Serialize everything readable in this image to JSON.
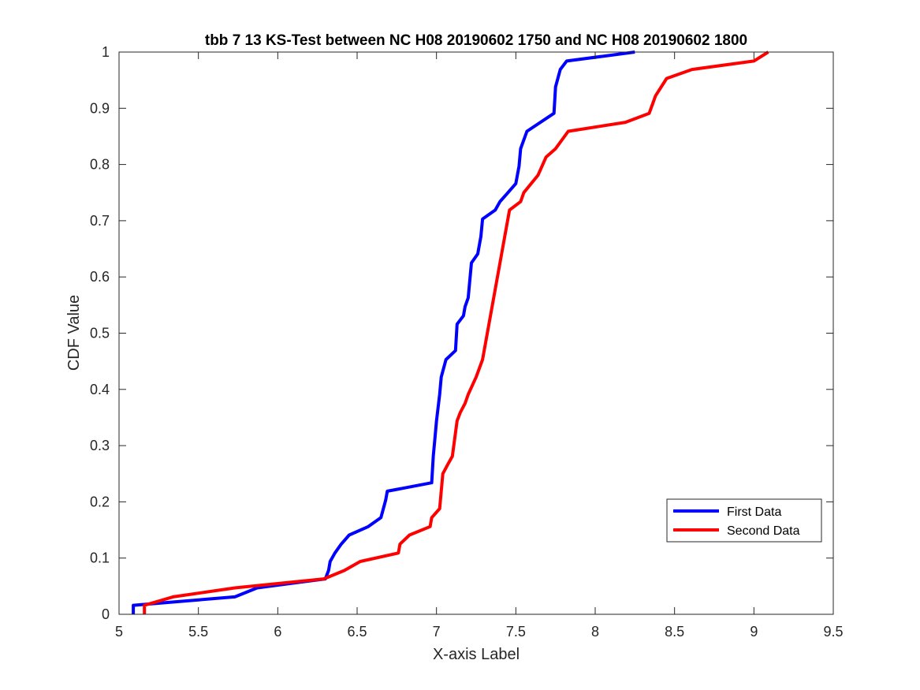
{
  "chart_data": {
    "type": "line",
    "title": "tbb 7 13 KS-Test between NC H08 20190602 1750 and NC H08 20190602 1800",
    "xlabel": "X-axis Label",
    "ylabel": "CDF Value",
    "xlim": [
      5,
      9.5
    ],
    "ylim": [
      0,
      1
    ],
    "xticks": [
      5,
      5.5,
      6,
      6.5,
      7,
      7.5,
      8,
      8.5,
      9,
      9.5
    ],
    "yticks": [
      0,
      0.1,
      0.2,
      0.3,
      0.4,
      0.5,
      0.6,
      0.7,
      0.8,
      0.9,
      1
    ],
    "xtick_labels": [
      "5",
      "5.5",
      "6",
      "6.5",
      "7",
      "7.5",
      "8",
      "8.5",
      "9",
      "9.5"
    ],
    "ytick_labels": [
      "0",
      "0.1",
      "0.2",
      "0.3",
      "0.4",
      "0.5",
      "0.6",
      "0.7",
      "0.8",
      "0.9",
      "1"
    ],
    "grid": false,
    "legend_position": "lower-right",
    "series": [
      {
        "name": "First Data",
        "color": "#0000ff",
        "points": [
          [
            5.09,
            0
          ],
          [
            5.09,
            0.016
          ],
          [
            5.73,
            0.031
          ],
          [
            5.87,
            0.047
          ],
          [
            6.3,
            0.063
          ],
          [
            6.32,
            0.078
          ],
          [
            6.33,
            0.094
          ],
          [
            6.36,
            0.109
          ],
          [
            6.4,
            0.125
          ],
          [
            6.45,
            0.141
          ],
          [
            6.57,
            0.156
          ],
          [
            6.65,
            0.172
          ],
          [
            6.68,
            0.203
          ],
          [
            6.69,
            0.219
          ],
          [
            6.97,
            0.234
          ],
          [
            6.98,
            0.281
          ],
          [
            6.99,
            0.313
          ],
          [
            7.0,
            0.344
          ],
          [
            7.02,
            0.391
          ],
          [
            7.03,
            0.422
          ],
          [
            7.06,
            0.453
          ],
          [
            7.12,
            0.469
          ],
          [
            7.13,
            0.516
          ],
          [
            7.17,
            0.531
          ],
          [
            7.18,
            0.547
          ],
          [
            7.2,
            0.563
          ],
          [
            7.22,
            0.625
          ],
          [
            7.26,
            0.641
          ],
          [
            7.28,
            0.672
          ],
          [
            7.29,
            0.703
          ],
          [
            7.37,
            0.719
          ],
          [
            7.4,
            0.734
          ],
          [
            7.45,
            0.75
          ],
          [
            7.5,
            0.766
          ],
          [
            7.52,
            0.797
          ],
          [
            7.53,
            0.828
          ],
          [
            7.57,
            0.859
          ],
          [
            7.74,
            0.891
          ],
          [
            7.75,
            0.938
          ],
          [
            7.78,
            0.969
          ],
          [
            7.82,
            0.984
          ],
          [
            8.25,
            1.0
          ]
        ]
      },
      {
        "name": "Second Data",
        "color": "#ff0000",
        "points": [
          [
            5.16,
            0
          ],
          [
            5.16,
            0.016
          ],
          [
            5.34,
            0.031
          ],
          [
            5.73,
            0.047
          ],
          [
            6.29,
            0.063
          ],
          [
            6.42,
            0.078
          ],
          [
            6.52,
            0.094
          ],
          [
            6.76,
            0.109
          ],
          [
            6.77,
            0.125
          ],
          [
            6.83,
            0.141
          ],
          [
            6.96,
            0.156
          ],
          [
            6.97,
            0.172
          ],
          [
            7.02,
            0.188
          ],
          [
            7.03,
            0.219
          ],
          [
            7.04,
            0.25
          ],
          [
            7.07,
            0.266
          ],
          [
            7.1,
            0.281
          ],
          [
            7.13,
            0.344
          ],
          [
            7.15,
            0.359
          ],
          [
            7.18,
            0.375
          ],
          [
            7.2,
            0.391
          ],
          [
            7.25,
            0.422
          ],
          [
            7.29,
            0.453
          ],
          [
            7.46,
            0.719
          ],
          [
            7.53,
            0.734
          ],
          [
            7.55,
            0.75
          ],
          [
            7.64,
            0.781
          ],
          [
            7.69,
            0.813
          ],
          [
            7.75,
            0.828
          ],
          [
            7.83,
            0.859
          ],
          [
            8.19,
            0.875
          ],
          [
            8.34,
            0.891
          ],
          [
            8.38,
            0.922
          ],
          [
            8.45,
            0.953
          ],
          [
            8.61,
            0.969
          ],
          [
            9.0,
            0.984
          ],
          [
            9.09,
            1.0
          ]
        ]
      }
    ]
  }
}
